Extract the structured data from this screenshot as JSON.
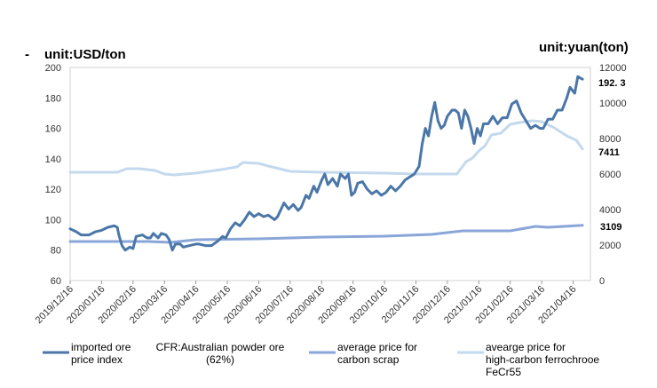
{
  "chart_data": {
    "type": "line",
    "marker": "-",
    "y_left_label": "unit:USD/ton",
    "y_right_label": "unit:yuan(ton)",
    "y_left_ticks": [
      "200",
      "180",
      "160",
      "140",
      "120",
      "100",
      "80",
      "60"
    ],
    "y_right_ticks": [
      "12000",
      "10000",
      "8000",
      "6000",
      "4000",
      "2000",
      "0"
    ],
    "ylim_left": [
      60,
      200
    ],
    "ylim_right": [
      0,
      12000
    ],
    "x_tick_labels": [
      "2019/12/16",
      "2020/01/16",
      "2020/02/16",
      "2020/03/16",
      "2020/04/16",
      "2020/05/16",
      "2020/06/16",
      "2020/07/16",
      "2020/08/16",
      "2020/09/16",
      "2020/10/16",
      "2020/11/16",
      "2020/12/16",
      "2021/01/16",
      "2021/02/16",
      "2021/03/16",
      "2021/04/16"
    ],
    "x_range_months": [
      0,
      16.55
    ],
    "end_labels": {
      "iron_ore": "192. 3",
      "ferrochrome": "7411",
      "scrap": "3109"
    },
    "series": [
      {
        "name": "imported ore price index",
        "legend_text": "imported ore price index",
        "legend_text_2": "CFR:Australian powder ore (62%)",
        "axis": "left",
        "color": "#4a77a8",
        "points": [
          [
            0,
            94
          ],
          [
            0.2,
            92
          ],
          [
            0.35,
            90
          ],
          [
            0.6,
            90
          ],
          [
            0.8,
            92
          ],
          [
            1,
            93
          ],
          [
            1.2,
            95
          ],
          [
            1.4,
            96
          ],
          [
            1.5,
            95
          ],
          [
            1.55,
            90
          ],
          [
            1.65,
            83
          ],
          [
            1.75,
            80
          ],
          [
            1.9,
            82
          ],
          [
            2,
            81
          ],
          [
            2.1,
            89
          ],
          [
            2.3,
            90
          ],
          [
            2.45,
            88
          ],
          [
            2.55,
            88
          ],
          [
            2.65,
            91
          ],
          [
            2.8,
            88
          ],
          [
            2.9,
            91
          ],
          [
            3.05,
            90
          ],
          [
            3.15,
            87
          ],
          [
            3.25,
            80
          ],
          [
            3.35,
            84
          ],
          [
            3.5,
            84
          ],
          [
            3.6,
            82
          ],
          [
            3.8,
            83
          ],
          [
            4,
            84
          ],
          [
            4.1,
            84
          ],
          [
            4.3,
            83
          ],
          [
            4.5,
            83
          ],
          [
            4.7,
            86
          ],
          [
            4.85,
            89
          ],
          [
            4.95,
            88
          ],
          [
            5.1,
            94
          ],
          [
            5.25,
            98
          ],
          [
            5.4,
            96
          ],
          [
            5.55,
            100
          ],
          [
            5.7,
            105
          ],
          [
            5.85,
            102
          ],
          [
            6.0,
            104
          ],
          [
            6.15,
            102
          ],
          [
            6.3,
            103
          ],
          [
            6.5,
            100
          ],
          [
            6.6,
            102
          ],
          [
            6.8,
            111
          ],
          [
            6.95,
            107
          ],
          [
            7.1,
            110
          ],
          [
            7.25,
            106
          ],
          [
            7.35,
            108
          ],
          [
            7.5,
            116
          ],
          [
            7.6,
            114
          ],
          [
            7.75,
            122
          ],
          [
            7.85,
            118
          ],
          [
            8,
            126
          ],
          [
            8.1,
            130
          ],
          [
            8.2,
            123
          ],
          [
            8.35,
            127
          ],
          [
            8.5,
            122
          ],
          [
            8.6,
            130
          ],
          [
            8.75,
            127
          ],
          [
            8.85,
            130
          ],
          [
            8.95,
            116
          ],
          [
            9.05,
            118
          ],
          [
            9.15,
            124
          ],
          [
            9.3,
            125
          ],
          [
            9.45,
            120
          ],
          [
            9.6,
            117
          ],
          [
            9.75,
            119
          ],
          [
            9.9,
            116
          ],
          [
            10.05,
            118
          ],
          [
            10.2,
            122
          ],
          [
            10.35,
            119
          ],
          [
            10.5,
            122
          ],
          [
            10.65,
            126
          ],
          [
            10.8,
            128
          ],
          [
            10.95,
            130
          ],
          [
            11.1,
            135
          ],
          [
            11.2,
            150
          ],
          [
            11.3,
            160
          ],
          [
            11.4,
            155
          ],
          [
            11.5,
            168
          ],
          [
            11.6,
            177
          ],
          [
            11.7,
            165
          ],
          [
            11.8,
            160
          ],
          [
            11.9,
            162
          ],
          [
            12.0,
            168
          ],
          [
            12.15,
            172
          ],
          [
            12.25,
            172
          ],
          [
            12.35,
            170
          ],
          [
            12.45,
            160
          ],
          [
            12.55,
            172
          ],
          [
            12.65,
            168
          ],
          [
            12.75,
            160
          ],
          [
            12.85,
            150
          ],
          [
            12.95,
            160
          ],
          [
            13.05,
            155
          ],
          [
            13.15,
            163
          ],
          [
            13.3,
            163
          ],
          [
            13.45,
            168
          ],
          [
            13.6,
            163
          ],
          [
            13.75,
            167
          ],
          [
            13.9,
            167
          ],
          [
            14.05,
            176
          ],
          [
            14.2,
            178
          ],
          [
            14.35,
            170
          ],
          [
            14.5,
            165
          ],
          [
            14.65,
            160
          ],
          [
            14.8,
            162
          ],
          [
            14.95,
            160
          ],
          [
            15.05,
            160
          ],
          [
            15.2,
            166
          ],
          [
            15.35,
            166
          ],
          [
            15.5,
            172
          ],
          [
            15.65,
            172
          ],
          [
            15.8,
            180
          ],
          [
            15.9,
            187
          ],
          [
            16.05,
            183
          ],
          [
            16.15,
            194
          ],
          [
            16.3,
            192.3
          ]
        ]
      },
      {
        "name": "average price for carbon scrap",
        "legend_text": "average price for carbon scrap",
        "axis": "right",
        "color": "#8aa6d8",
        "points": [
          [
            0,
            2200
          ],
          [
            2.5,
            2200
          ],
          [
            3.2,
            2150
          ],
          [
            4,
            2300
          ],
          [
            6,
            2350
          ],
          [
            8,
            2450
          ],
          [
            10,
            2500
          ],
          [
            11.5,
            2600
          ],
          [
            12.5,
            2800
          ],
          [
            14,
            2800
          ],
          [
            14.8,
            3050
          ],
          [
            15.2,
            3000
          ],
          [
            16.3,
            3109
          ]
        ]
      },
      {
        "name": "avearge price for high-carbon ferrochrooe FeCr55",
        "legend_text": "avearge price for high-carbon ferrochrooe FeCr55",
        "axis": "right",
        "color": "#c3d9ee",
        "points": [
          [
            0,
            6100
          ],
          [
            1.5,
            6100
          ],
          [
            1.8,
            6300
          ],
          [
            2.2,
            6300
          ],
          [
            2.7,
            6200
          ],
          [
            3.0,
            6000
          ],
          [
            3.3,
            5950
          ],
          [
            4,
            6050
          ],
          [
            4.8,
            6250
          ],
          [
            5.3,
            6400
          ],
          [
            5.5,
            6650
          ],
          [
            6,
            6600
          ],
          [
            6.3,
            6450
          ],
          [
            7,
            6150
          ],
          [
            8,
            6100
          ],
          [
            10,
            6050
          ],
          [
            11,
            6000
          ],
          [
            12.3,
            6000
          ],
          [
            12.6,
            6700
          ],
          [
            12.8,
            6900
          ],
          [
            13,
            7300
          ],
          [
            13.2,
            7600
          ],
          [
            13.4,
            8200
          ],
          [
            13.7,
            8300
          ],
          [
            14.0,
            8800
          ],
          [
            14.3,
            8900
          ],
          [
            14.7,
            9000
          ],
          [
            15.0,
            8950
          ],
          [
            15.4,
            8600
          ],
          [
            15.8,
            8150
          ],
          [
            16.1,
            7900
          ],
          [
            16.3,
            7411
          ]
        ]
      }
    ],
    "legend_placement": "bottom"
  }
}
